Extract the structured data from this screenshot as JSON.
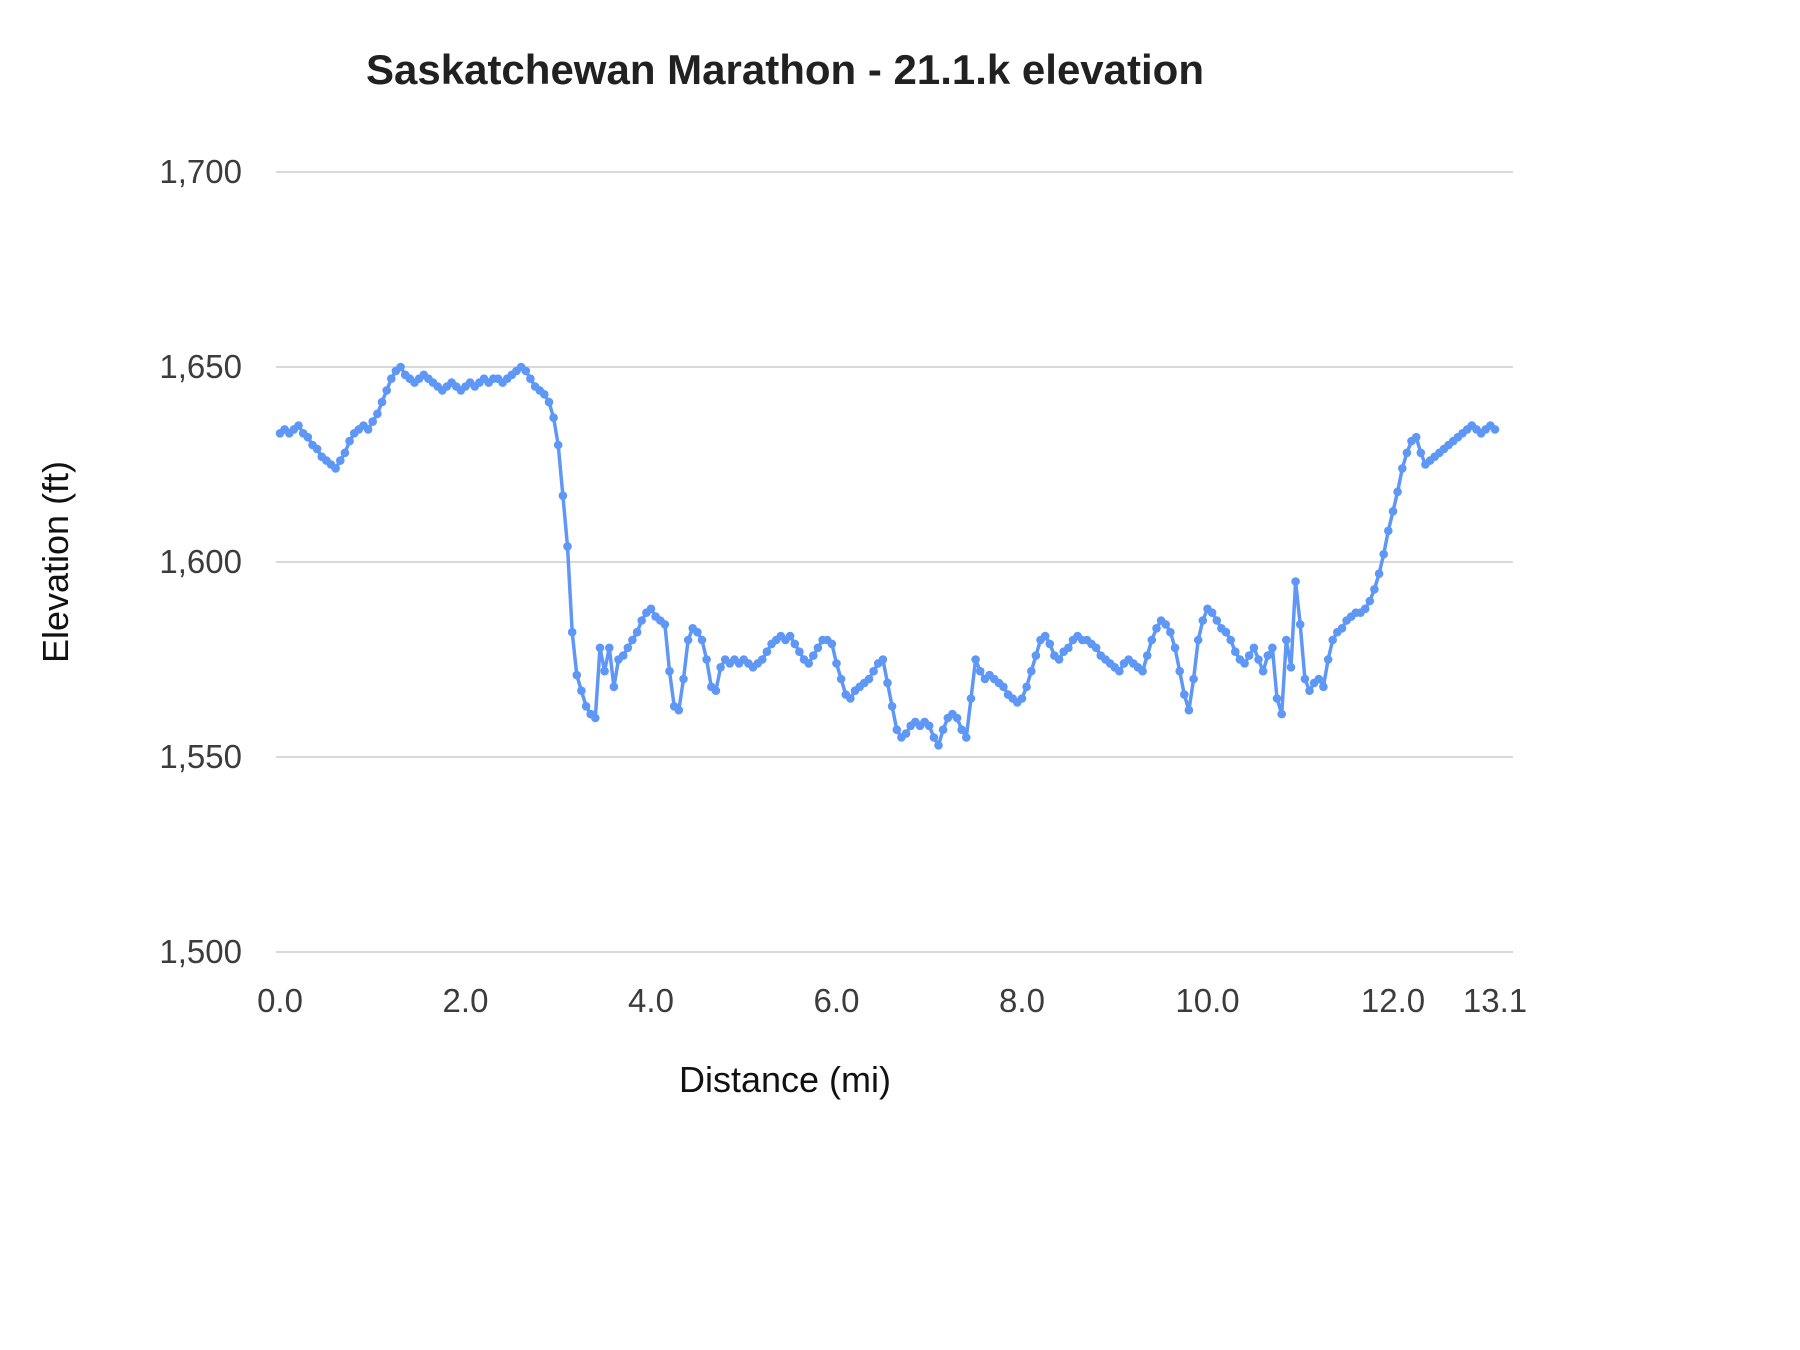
{
  "chart_data": {
    "type": "line",
    "title": "Saskatchewan Marathon - 21.1.k elevation",
    "xlabel": "Distance (mi)",
    "ylabel": "Elevation (ft)",
    "xlim": [
      0,
      13.1
    ],
    "ylim": [
      1500,
      1700
    ],
    "x_ticks": [
      0.0,
      2.0,
      4.0,
      6.0,
      8.0,
      10.0,
      12.0,
      13.1
    ],
    "x_tick_labels": [
      "0.0",
      "2.0",
      "4.0",
      "6.0",
      "8.0",
      "10.0",
      "12.0",
      "13.1"
    ],
    "y_ticks": [
      1500,
      1550,
      1600,
      1650,
      1700
    ],
    "y_tick_labels": [
      "1,500",
      "1,550",
      "1,600",
      "1,650",
      "1,700"
    ],
    "grid": "horizontal",
    "legend": "none",
    "marker": "circle",
    "colors": {
      "series": "#5e97f6",
      "grid": "#d9d9d9",
      "tick_text": "#3c3c3c",
      "title_text": "#212121"
    },
    "series": [
      {
        "name": "Elevation",
        "x_start": 0,
        "x_step": 0.05,
        "values": [
          1633,
          1634,
          1633,
          1634,
          1635,
          1633,
          1632,
          1630,
          1629,
          1627,
          1626,
          1625,
          1624,
          1626,
          1628,
          1631,
          1633,
          1634,
          1635,
          1634,
          1636,
          1638,
          1641,
          1644,
          1647,
          1649,
          1650,
          1648,
          1647,
          1646,
          1647,
          1648,
          1647,
          1646,
          1645,
          1644,
          1645,
          1646,
          1645,
          1644,
          1645,
          1646,
          1645,
          1646,
          1647,
          1646,
          1647,
          1647,
          1646,
          1647,
          1648,
          1649,
          1650,
          1649,
          1647,
          1645,
          1644,
          1643,
          1641,
          1637,
          1630,
          1617,
          1604,
          1582,
          1571,
          1567,
          1563,
          1561,
          1560,
          1578,
          1572,
          1578,
          1568,
          1575,
          1576,
          1578,
          1580,
          1582,
          1585,
          1587,
          1588,
          1586,
          1585,
          1584,
          1572,
          1563,
          1562,
          1570,
          1580,
          1583,
          1582,
          1580,
          1575,
          1568,
          1567,
          1573,
          1575,
          1574,
          1575,
          1574,
          1575,
          1574,
          1573,
          1574,
          1575,
          1577,
          1579,
          1580,
          1581,
          1580,
          1581,
          1579,
          1577,
          1575,
          1574,
          1576,
          1578,
          1580,
          1580,
          1579,
          1574,
          1570,
          1566,
          1565,
          1567,
          1568,
          1569,
          1570,
          1572,
          1574,
          1575,
          1569,
          1563,
          1557,
          1555,
          1556,
          1558,
          1559,
          1558,
          1559,
          1558,
          1555,
          1553,
          1557,
          1560,
          1561,
          1560,
          1557,
          1555,
          1565,
          1575,
          1572,
          1570,
          1571,
          1570,
          1569,
          1568,
          1566,
          1565,
          1564,
          1565,
          1568,
          1572,
          1576,
          1580,
          1581,
          1579,
          1576,
          1575,
          1577,
          1578,
          1580,
          1581,
          1580,
          1580,
          1579,
          1578,
          1576,
          1575,
          1574,
          1573,
          1572,
          1574,
          1575,
          1574,
          1573,
          1572,
          1576,
          1580,
          1583,
          1585,
          1584,
          1582,
          1578,
          1572,
          1566,
          1562,
          1570,
          1580,
          1585,
          1588,
          1587,
          1585,
          1583,
          1582,
          1580,
          1577,
          1575,
          1574,
          1576,
          1578,
          1575,
          1572,
          1576,
          1578,
          1565,
          1561,
          1580,
          1573,
          1595,
          1584,
          1570,
          1567,
          1569,
          1570,
          1568,
          1575,
          1580,
          1582,
          1583,
          1585,
          1586,
          1587,
          1587,
          1588,
          1590,
          1593,
          1597,
          1602,
          1608,
          1613,
          1618,
          1624,
          1628,
          1631,
          1632,
          1628,
          1625,
          1626,
          1627,
          1628,
          1629,
          1630,
          1631,
          1632,
          1633,
          1634,
          1635,
          1634,
          1633,
          1634,
          1635,
          1634
        ]
      }
    ]
  }
}
